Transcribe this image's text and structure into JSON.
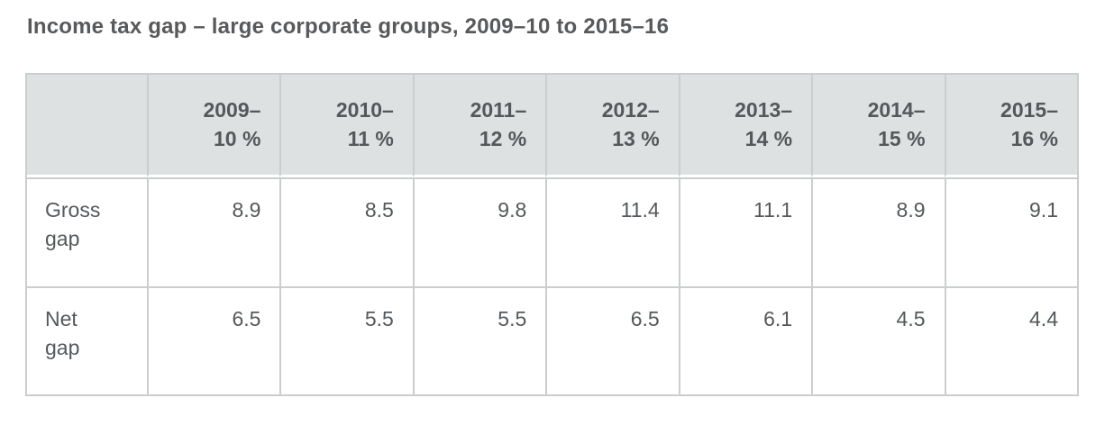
{
  "page": {
    "title": "Income tax gap – large corporate groups, 2009–10 to 2015–16"
  },
  "table": {
    "corner_label": "",
    "columns": [
      "2009–\n10 %",
      "2010–\n11 %",
      "2011–\n12 %",
      "2012–\n13 %",
      "2013–\n14 %",
      "2014–\n15 %",
      "2015–\n16 %"
    ],
    "rows": [
      {
        "label": "Gross\ngap",
        "values": [
          "8.9",
          "8.5",
          "9.8",
          "11.4",
          "11.1",
          "8.9",
          "9.1"
        ]
      },
      {
        "label": "Net\ngap",
        "values": [
          "6.5",
          "5.5",
          "5.5",
          "6.5",
          "6.1",
          "4.5",
          "4.4"
        ]
      }
    ]
  },
  "colors": {
    "header_background": "#dee1e2",
    "border": "#cbcdce",
    "text": "#55585a",
    "title_text": "#58595b",
    "page_background": "#ffffff"
  },
  "chart_data": {
    "type": "table",
    "title": "Income tax gap – large corporate groups, 2009–10 to 2015–16",
    "categories": [
      "2009–10 %",
      "2010–11 %",
      "2011–12 %",
      "2012–13 %",
      "2013–14 %",
      "2014–15 %",
      "2015–16 %"
    ],
    "series": [
      {
        "name": "Gross gap",
        "values": [
          8.9,
          8.5,
          9.8,
          11.4,
          11.1,
          8.9,
          9.1
        ]
      },
      {
        "name": "Net gap",
        "values": [
          6.5,
          5.5,
          5.5,
          6.5,
          6.1,
          4.5,
          4.4
        ]
      }
    ]
  }
}
